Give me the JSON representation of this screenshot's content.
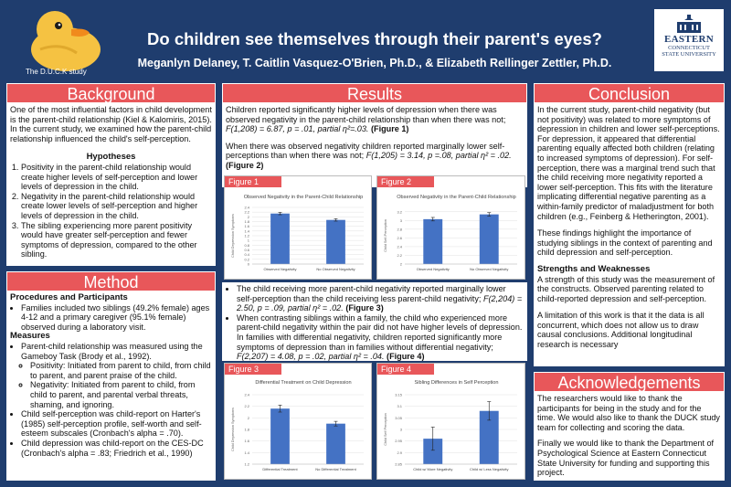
{
  "header": {
    "title": "Do children see themselves through their parent's eyes?",
    "authors": "Meganlyn Delaney, T. Caitlin Vasquez-O'Brien, Ph.D., & Elizabeth Rellinger Zettler, Ph.D.",
    "duck_caption": "The D.U.C.K study",
    "logo_line1": "EASTERN",
    "logo_line2": "CONNECTICUT",
    "logo_line3": "STATE UNIVERSITY"
  },
  "background": {
    "heading": "Background",
    "intro": "One of the most influential factors in child development is the parent-child relationship (Kiel & Kalomiris, 2015). In the current study, we examined how the parent-child relationship influenced the child's self-perception.",
    "hyp_heading": "Hypotheses",
    "hypotheses": [
      "Positivity in the parent-child relationship would create higher levels of self-perception and lower levels of depression in the child.",
      "Negativity in the parent-child relationship would create lower levels of self-perception and higher levels of depression in the child.",
      "The sibling experiencing more parent positivity would have greater self-perception and fewer symptoms of depression, compared to the other sibling."
    ]
  },
  "method": {
    "heading": "Method",
    "proc_heading": "Procedures and Participants",
    "proc_item": "Families included two siblings (49.2% female) ages 4-12 and a primary caregiver (95.1% female) observed during a laboratory visit.",
    "meas_heading": "Measures",
    "m1": "Parent-child relationship was measured using the Gameboy Task (Brody et al., 1992).",
    "m1a": "Positivity: Initiated from parent to child, from child to parent, and parent praise of the child.",
    "m1b": "Negativity: Initiated from parent to child, from child to parent, and parental verbal threats, shaming, and ignoring.",
    "m2": "Child self-perception was child-report on Harter's (1985) self-perception profile, self-worth and self-esteem subscales (Cronbach's alpha = .70).",
    "m3": "Child depression was child-report on the CES-DC (Cronbach's alpha = .83; Friedrich et al., 1990)"
  },
  "results": {
    "heading": "Results",
    "p1": "Children reported significantly higher levels of depression when there was observed negativity in the parent-child relationship than when there was not;",
    "p1_stat": "F(1,208) = 6.87, p = .01, partial η²=.03.",
    "p1_fig": "(Figure 1)",
    "p2": "When there was observed negativity children reported marginally lower self-perceptions than when there was not;",
    "p2_stat": "F(1,205) = 3.14, p =.08, partial η² = .02.",
    "p2_fig": "(Figure 2)",
    "b1": "The child receiving more parent-child negativity reported marginally lower self-perception than the child receiving less parent-child negativity;",
    "b1_stat": "F(2,204) = 2.50, p = .09, partial η² = .02.",
    "b1_fig": "(Figure 3)",
    "b2": "When contrasting siblings within a family, the child who experienced more parent-child negativity within the pair did not have higher levels of depression. In families with differential negativity, children reported significantly more symptoms of depression than in families without differential negativity;",
    "b2_stat": "F(2,207) = 4.08, p = .02, partial η² = .04.",
    "b2_fig": "(Figure 4)"
  },
  "conclusion": {
    "heading": "Conclusion",
    "p1": "In the current study, parent-child negativity (but not positivity) was related to more symptoms of depression in children and lower self-perceptions. For depression, it appeared that differential parenting equally affected both children (relating to increased symptoms of depression). For self-perception, there was a marginal trend such that the child receiving more negativity reported a lower self-perception. This fits with the literature implicating differential negative parenting as a within-family predictor of maladjustment for both children (e.g., Feinberg & Hetherington, 2001).",
    "p2": "These findings highlight the importance of studying siblings in the context of parenting and child depression and self-perception.",
    "sw_heading": "Strengths and Weaknesses",
    "p3": "A strength of this study was the measurement of the constructs. Observed parenting related to child-reported depression and self-perception.",
    "p4": "A limitation of this work is that it the data is all concurrent, which does not allow us to draw causal conclusions. Additional longitudinal research is necessary"
  },
  "ack": {
    "heading": "Acknowledgements",
    "p1": "The researchers would like to thank the participants for being in the study and for the time. We would also like to thank the DUCK study team for collecting and scoring the data.",
    "p2": "Finally we would like to thank the Department of Psychological Science at Eastern Connecticut State University for funding and supporting this project."
  },
  "colors": {
    "navy": "#1f3d6e",
    "coral": "#e8575a",
    "bar": "#4472c4"
  },
  "chart_data": [
    {
      "type": "bar",
      "tab": "Figure 1",
      "title": "Observed Negativity in the Parent-Child Relationship",
      "ylabel": "Child Depression Symptoms",
      "categories": [
        "Observed Negativity",
        "No Observed Negativity"
      ],
      "values": [
        2.14,
        1.87
      ],
      "errors": [
        0.05,
        0.05
      ],
      "ylim": [
        0,
        2.4
      ],
      "yticks": [
        "0",
        "0.2",
        "0.4",
        "0.6",
        "0.8",
        "1",
        "1.2",
        "1.4",
        "1.6",
        "1.8",
        "2",
        "2.2",
        "2.4"
      ]
    },
    {
      "type": "bar",
      "tab": "Figure 2",
      "title": "Observed Negativity in the Parent-Child Relationship",
      "ylabel": "Child Self-Perception",
      "categories": [
        "Observed Negativity",
        "No Observed Negativity"
      ],
      "values": [
        3.03,
        3.14
      ],
      "errors": [
        0.04,
        0.04
      ],
      "ylim": [
        2,
        3.3
      ],
      "yticks": [
        "2",
        "2.2",
        "2.4",
        "2.6",
        "2.8",
        "3",
        "3.2"
      ]
    },
    {
      "type": "bar",
      "tab": "Figure 3",
      "title": "Differential Treatment on Child Depression",
      "ylabel": "Child Depression Symptoms",
      "categories": [
        "Differential Treatment",
        "No Differential Treatment"
      ],
      "values": [
        2.16,
        1.9
      ],
      "errors": [
        0.06,
        0.04
      ],
      "ylim": [
        1.2,
        2.4
      ],
      "yticks": [
        "1.2",
        "1.4",
        "1.6",
        "1.8",
        "2",
        "2.2",
        "2.4"
      ]
    },
    {
      "type": "bar",
      "tab": "Figure 4",
      "title": "Sibling Differences in Self Perception",
      "ylabel": "Child Self Perception",
      "categories": [
        "Child w/ More Negativity",
        "Child w/ Less Negativity"
      ],
      "values": [
        2.96,
        3.08
      ],
      "errors": [
        0.05,
        0.04
      ],
      "ylim": [
        2.85,
        3.15
      ],
      "yticks": [
        "2.85",
        "2.9",
        "2.95",
        "3",
        "3.05",
        "3.1",
        "3.15"
      ]
    }
  ]
}
